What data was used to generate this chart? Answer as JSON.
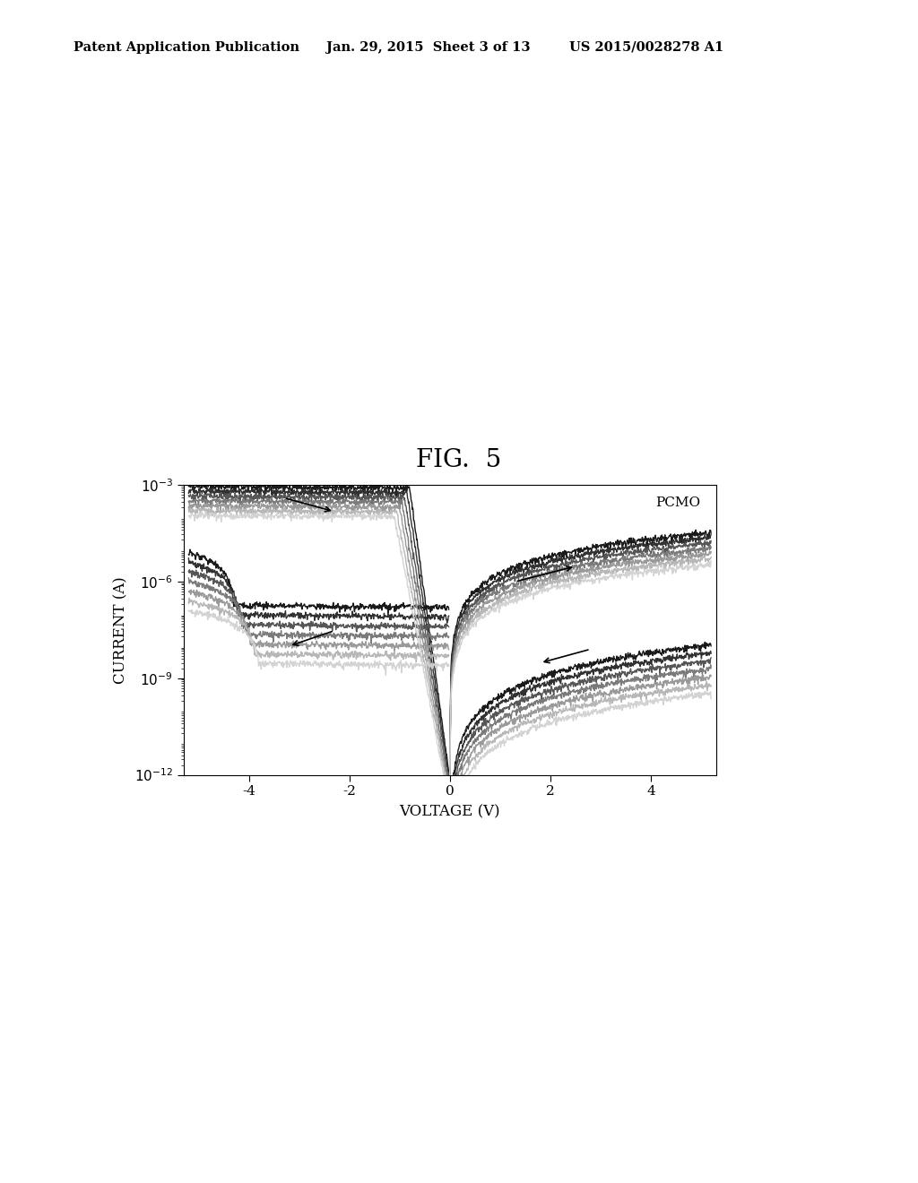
{
  "title": "FIG.  5",
  "annotation": "PCMO",
  "xlabel": "VOLTAGE (V)",
  "ylabel": "CURRENT (A)",
  "xlim": [
    -5.3,
    5.3
  ],
  "ylim_log": [
    -12,
    -3
  ],
  "xticks": [
    -4,
    -2,
    0,
    2,
    4
  ],
  "ytick_exponents": [
    -12,
    -9,
    -6,
    -3
  ],
  "background_color": "#ffffff",
  "header_left": "Patent Application Publication",
  "header_center": "Jan. 29, 2015  Sheet 3 of 13",
  "header_right": "US 2015/0028278 A1",
  "num_curves": 7,
  "curve_grays": [
    0.05,
    0.15,
    0.3,
    0.45,
    0.58,
    0.7,
    0.82
  ],
  "curve_lw": 1.0
}
